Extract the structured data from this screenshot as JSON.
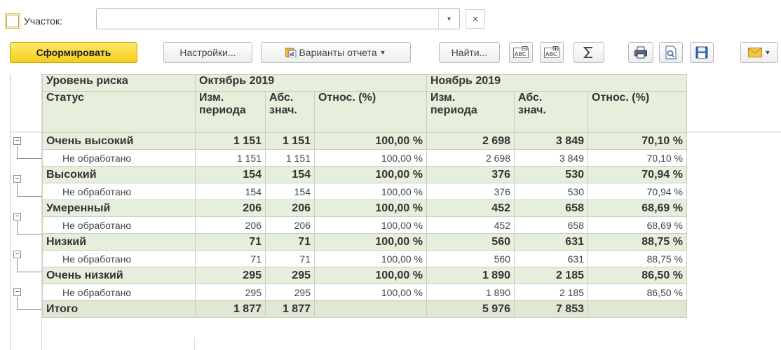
{
  "filter": {
    "checkbox_checked": false,
    "label": "Участок:",
    "value": "",
    "clear_label": "×",
    "dropdown_glyph": "▾"
  },
  "toolbar": {
    "generate": "Сформировать",
    "settings": "Настройки...",
    "variants": "Варианты отчета",
    "find": "Найти...",
    "icons": [
      "collapse-groups-icon",
      "expand-groups-icon",
      "sum-icon",
      "print-icon",
      "preview-icon",
      "save-icon",
      "mail-icon"
    ]
  },
  "table": {
    "headers": {
      "risk_level": "Уровень риска",
      "status": "Статус",
      "oct": "Октябрь 2019",
      "nov": "Ноябрь 2019",
      "chg1": "Изм.",
      "chg2": "периода",
      "abs1": "Абс.",
      "abs2": "знач.",
      "rel": "Относ. (%)"
    },
    "groups": [
      {
        "name": "Очень высокий",
        "oct": [
          "1 151",
          "1 151",
          "100,00 %"
        ],
        "nov": [
          "2 698",
          "3 849",
          "70,10 %"
        ],
        "detail": {
          "name": "Не обработано",
          "oct": [
            "1 151",
            "1 151",
            "100,00 %"
          ],
          "nov": [
            "2 698",
            "3 849",
            "70,10 %"
          ]
        }
      },
      {
        "name": "Высокий",
        "oct": [
          "154",
          "154",
          "100,00 %"
        ],
        "nov": [
          "376",
          "530",
          "70,94 %"
        ],
        "detail": {
          "name": "Не обработано",
          "oct": [
            "154",
            "154",
            "100,00 %"
          ],
          "nov": [
            "376",
            "530",
            "70,94 %"
          ]
        }
      },
      {
        "name": "Умеренный",
        "oct": [
          "206",
          "206",
          "100,00 %"
        ],
        "nov": [
          "452",
          "658",
          "68,69 %"
        ],
        "detail": {
          "name": "Не обработано",
          "oct": [
            "206",
            "206",
            "100,00 %"
          ],
          "nov": [
            "452",
            "658",
            "68,69 %"
          ]
        }
      },
      {
        "name": "Низкий",
        "oct": [
          "71",
          "71",
          "100,00 %"
        ],
        "nov": [
          "560",
          "631",
          "88,75 %"
        ],
        "detail": {
          "name": "Не обработано",
          "oct": [
            "71",
            "71",
            "100,00 %"
          ],
          "nov": [
            "560",
            "631",
            "88,75 %"
          ]
        }
      },
      {
        "name": "Очень низкий",
        "oct": [
          "295",
          "295",
          "100,00 %"
        ],
        "nov": [
          "1 890",
          "2 185",
          "86,50 %"
        ],
        "detail": {
          "name": "Не обработано",
          "oct": [
            "295",
            "295",
            "100,00 %"
          ],
          "nov": [
            "1 890",
            "2 185",
            "86,50 %"
          ]
        }
      }
    ],
    "total": {
      "name": "Итого",
      "oct": [
        "1 877",
        "1 877",
        ""
      ],
      "nov": [
        "5 976",
        "7 853",
        ""
      ]
    }
  },
  "colors": {
    "accent_yellow": "#f5cd1b",
    "header_green": "#e6eedc"
  }
}
